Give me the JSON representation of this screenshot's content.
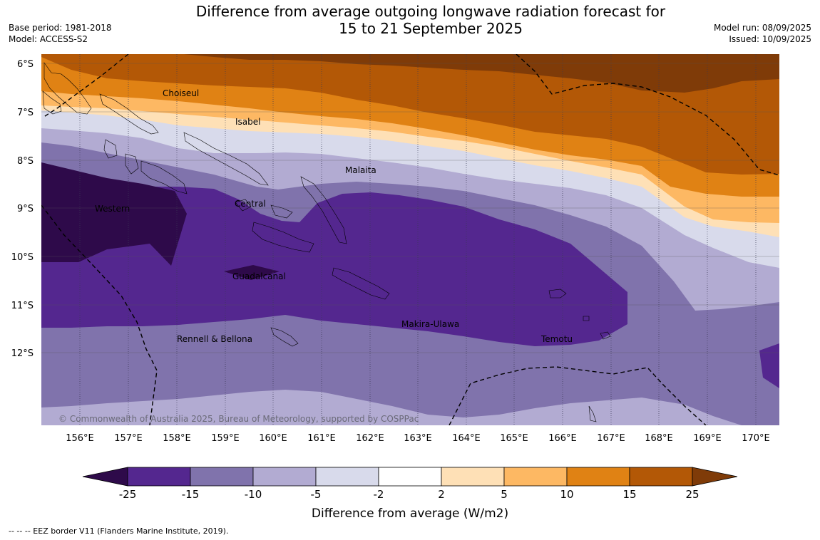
{
  "title_line1": "Difference from average outgoing longwave radiation forecast for",
  "title_line2": "15 to 21 September 2025",
  "base_period": "Base period: 1981-2018",
  "model": "Model: ACCESS-S2",
  "model_run": "Model run: 08/09/2025",
  "issued": "Issued: 10/09/2025",
  "lat_labels": [
    "6°S",
    "7°S",
    "8°S",
    "9°S",
    "10°S",
    "11°S",
    "12°S"
  ],
  "lon_labels": [
    "156°E",
    "157°E",
    "158°E",
    "159°E",
    "160°E",
    "161°E",
    "162°E",
    "163°E",
    "164°E",
    "165°E",
    "166°E",
    "167°E",
    "168°E",
    "169°E",
    "170°E"
  ],
  "regions": {
    "choiseul": "Choiseul",
    "isabel": "Isabel",
    "malaita": "Malaita",
    "western": "Western",
    "central": "Central",
    "guadalcanal": "Guadalcanal",
    "makira": "Makira-Ulawa",
    "rennell": "Rennell & Bellona",
    "temotu": "Temotu"
  },
  "copyright": "© Commonwealth of Australia 2025, Bureau of Meteorology, supported by COSPPac",
  "colorbar": {
    "ticks": [
      "-25",
      "-15",
      "-10",
      "-5",
      "-2",
      "2",
      "5",
      "10",
      "15",
      "25"
    ],
    "colors": [
      "#2e0a4a",
      "#54278f",
      "#8073ac",
      "#b2abd2",
      "#d8daeb",
      "#ffffff",
      "#fee0b6",
      "#fdb863",
      "#e08214",
      "#b35806",
      "#7f3b08"
    ],
    "label": "Difference from average (W/m2)"
  },
  "footer": "--  --  -- EEZ border V11 (Flanders Marine Institute, 2019)."
}
